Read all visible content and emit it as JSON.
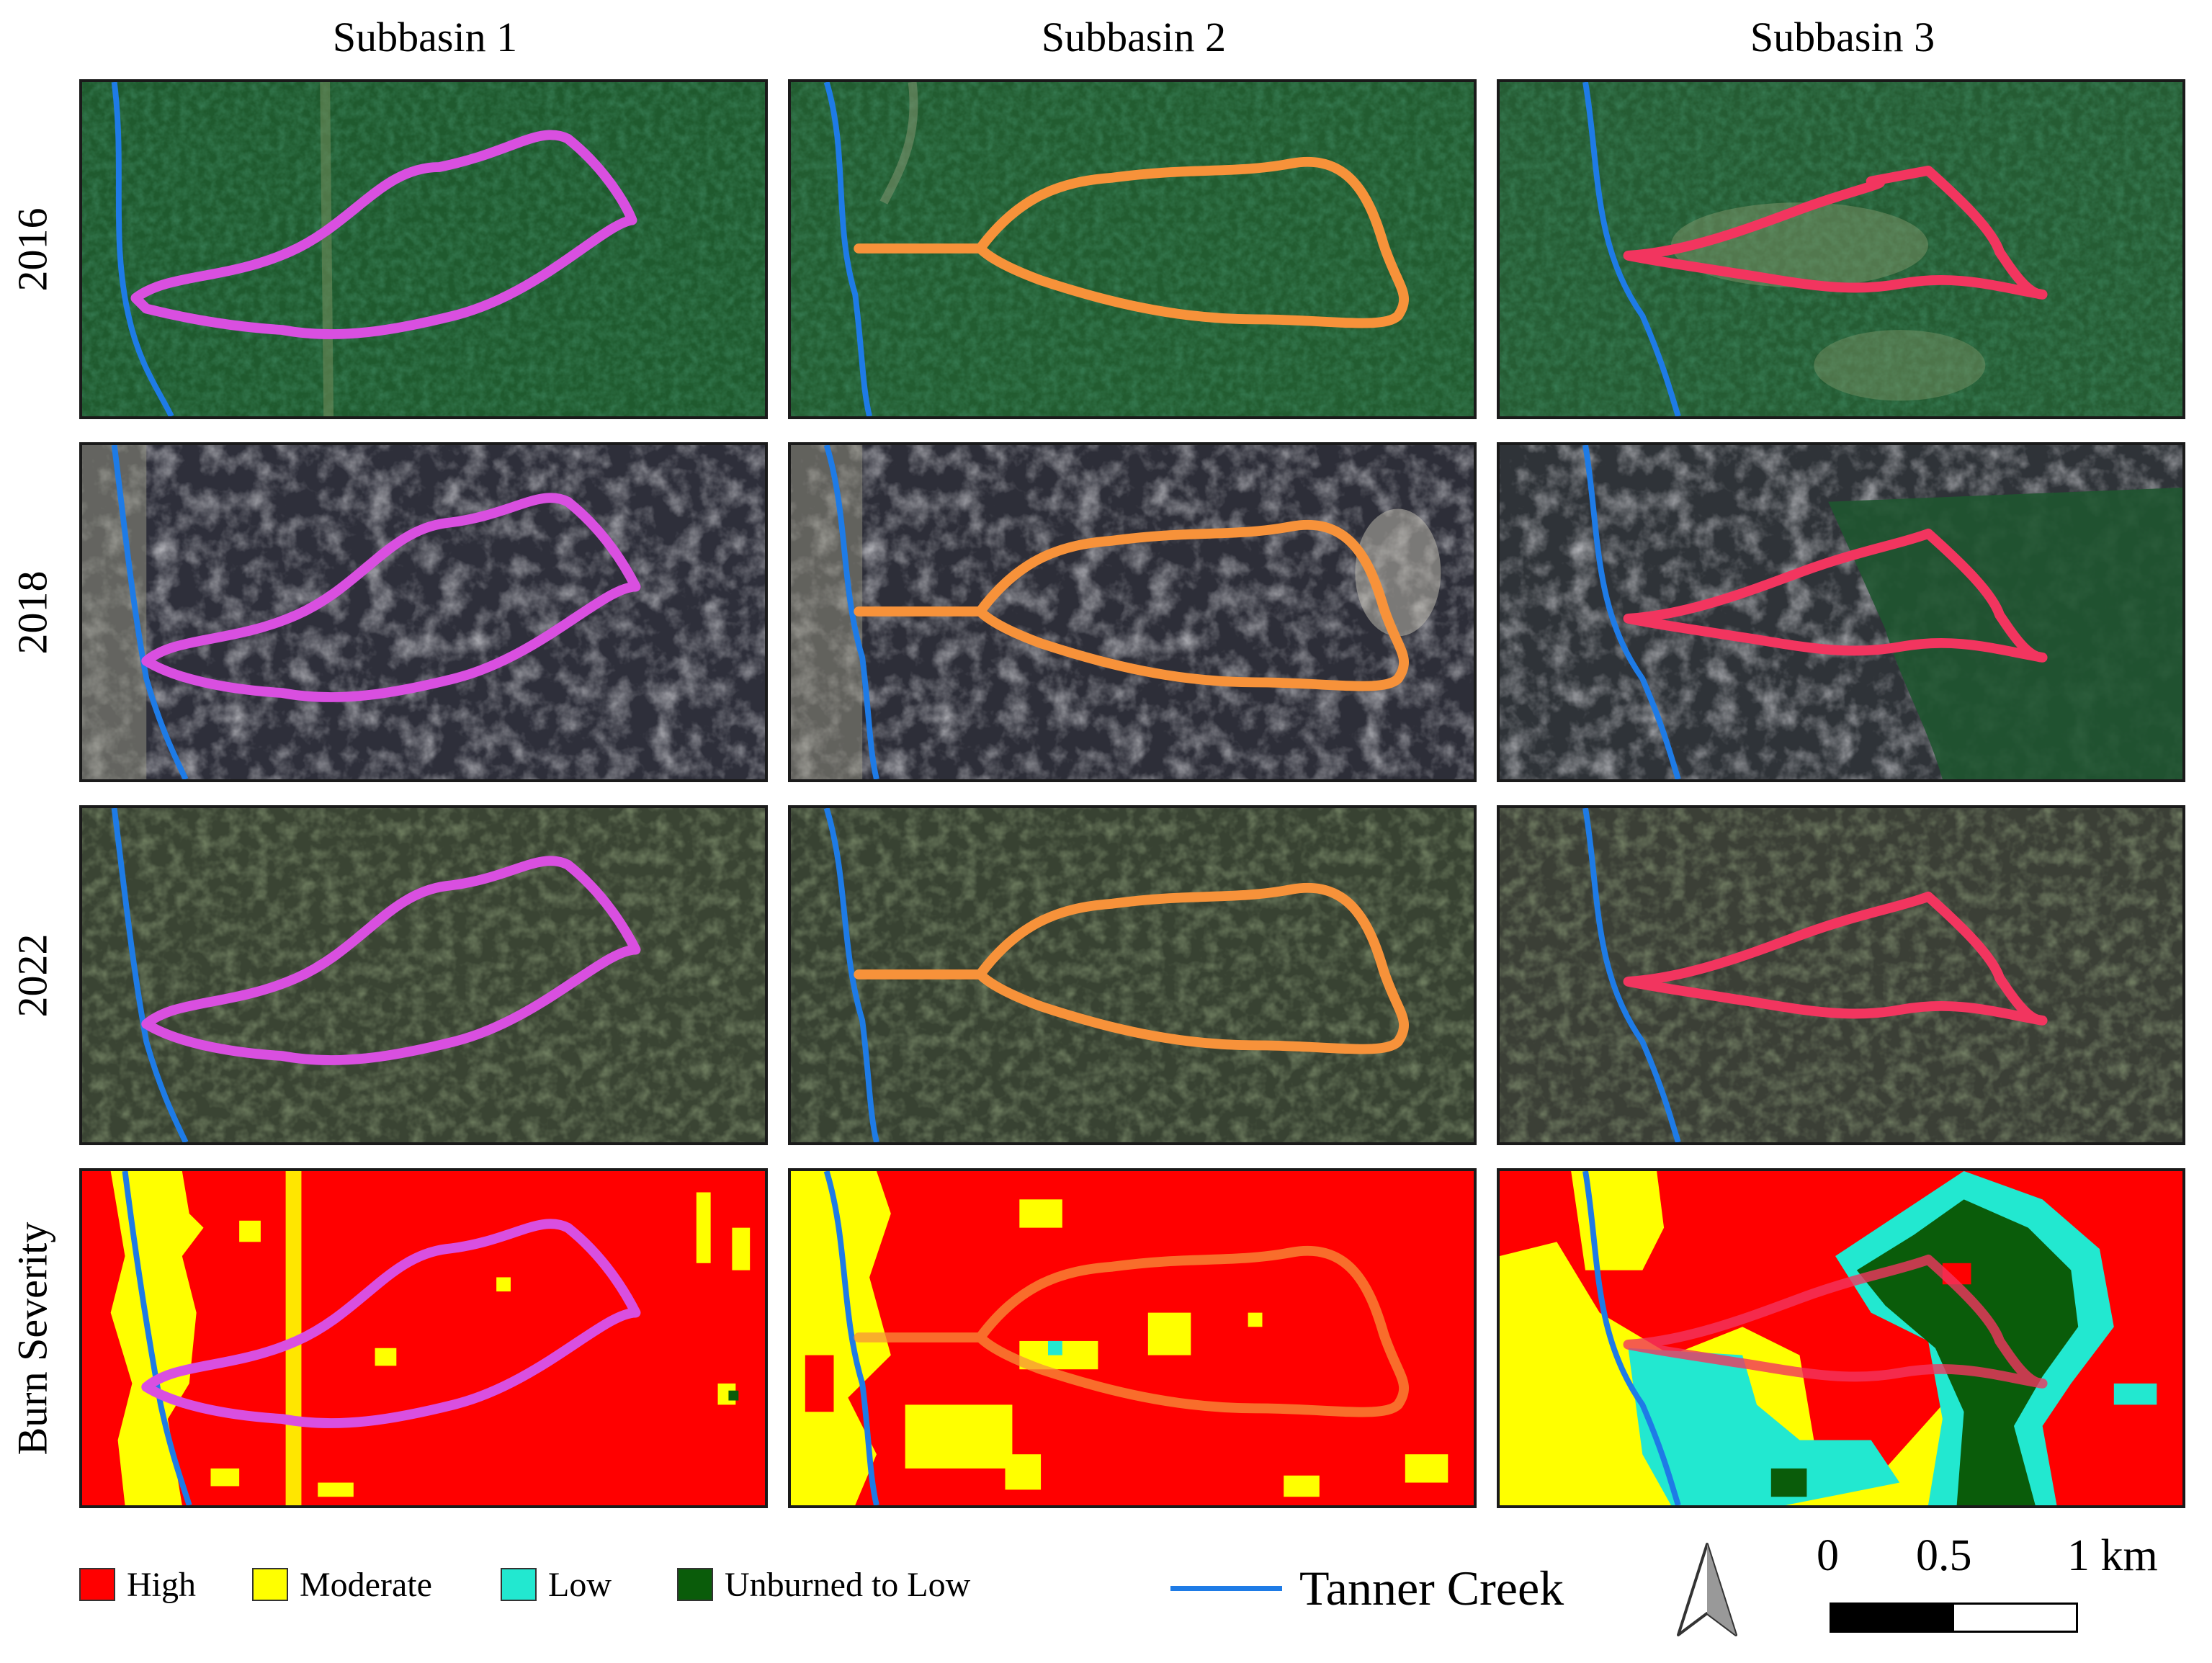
{
  "columns": [
    "Subbasin 1",
    "Subbasin 2",
    "Subbasin 3"
  ],
  "rows": [
    "2016",
    "2018",
    "2022",
    "Burn Severity"
  ],
  "subbasin_colors": [
    "#d94fe0",
    "#f7923a",
    "#f2355f"
  ],
  "creek_color": "#1e7be6",
  "legend": {
    "items": [
      {
        "label": "High",
        "color": "#ff0000"
      },
      {
        "label": "Moderate",
        "color": "#ffff00"
      },
      {
        "label": "Low",
        "color": "#22e8d0"
      },
      {
        "label": "Unburned to Low",
        "color": "#0a5c0a"
      }
    ],
    "creek_label": "Tanner Creek"
  },
  "scale": {
    "ticks": [
      "0",
      "0.5",
      "1 km"
    ]
  },
  "icons": {
    "north_arrow": "north-arrow-icon"
  }
}
